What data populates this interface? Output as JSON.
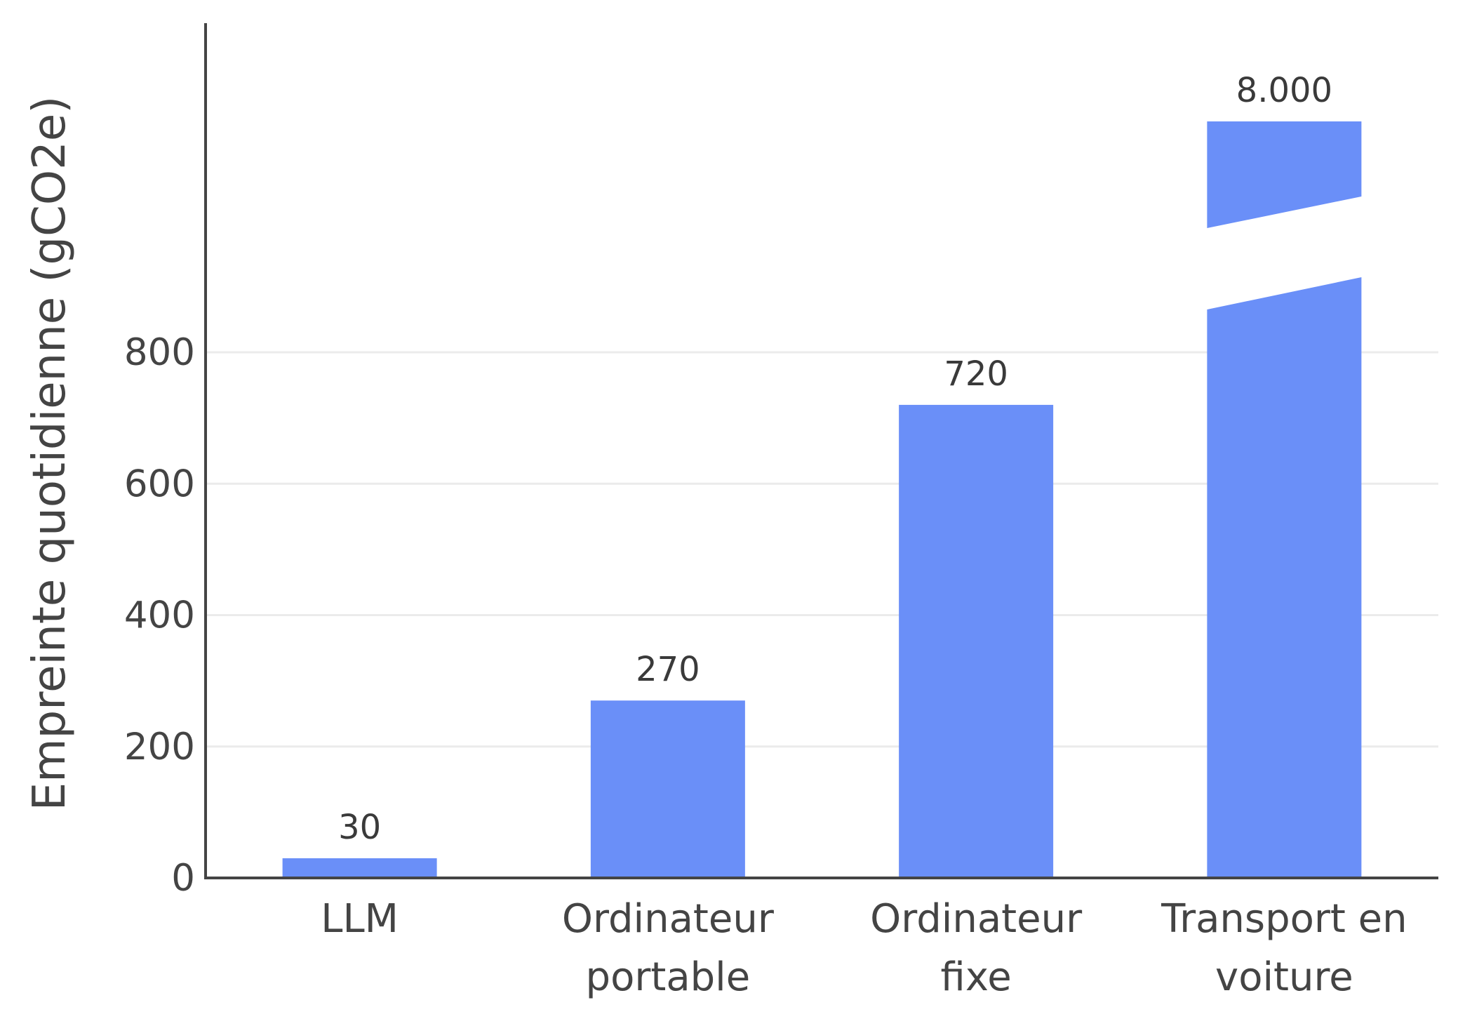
{
  "chart_data": {
    "type": "bar",
    "categories": [
      [
        "LLM"
      ],
      [
        "Ordinateur",
        "portable"
      ],
      [
        "Ordinateur",
        "fixe"
      ],
      [
        "Transport en",
        "voiture"
      ]
    ],
    "values": [
      30,
      270,
      720,
      8000
    ],
    "data_labels": [
      "30",
      "270",
      "720",
      "8.000"
    ],
    "broken_bars": [
      3
    ],
    "ylabel": "Empreinte quotidienne (gCO2e)",
    "yticks": [
      0,
      200,
      400,
      600,
      800
    ],
    "ylim": [
      0,
      1300
    ],
    "grid": true,
    "bar_color": "#6a8ff8",
    "text_color": "#444444",
    "grid_color": "#ebebeb",
    "axis_color": "#444444"
  }
}
